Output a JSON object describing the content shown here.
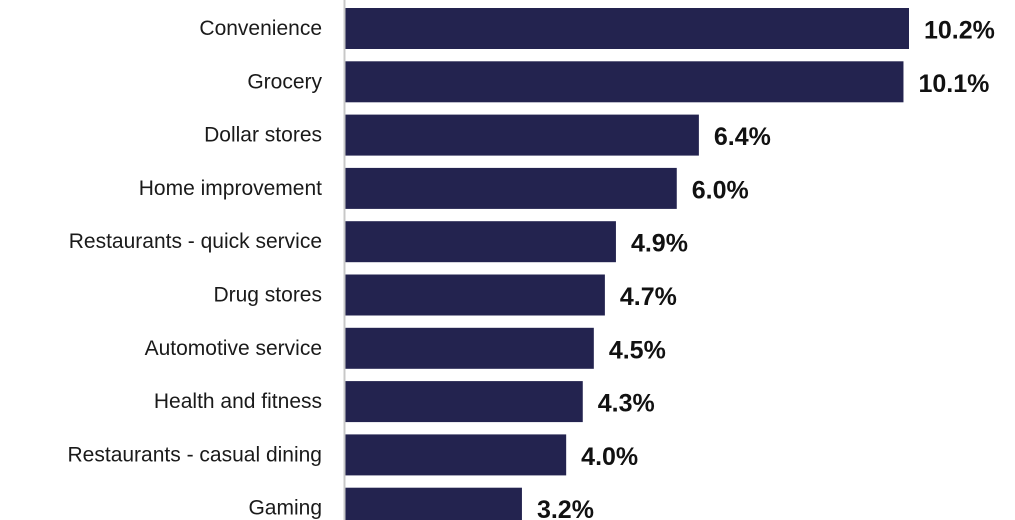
{
  "chart_data": {
    "type": "bar",
    "orientation": "horizontal",
    "categories": [
      "Convenience",
      "Grocery",
      "Dollar stores",
      "Home improvement",
      "Restaurants - quick service",
      "Drug stores",
      "Automotive service",
      "Health and fitness",
      "Restaurants - casual dining",
      "Gaming"
    ],
    "values": [
      10.2,
      10.1,
      6.4,
      6.0,
      4.9,
      4.7,
      4.5,
      4.3,
      4.0,
      3.2
    ],
    "value_labels": [
      "10.2%",
      "10.1%",
      "6.4%",
      "6.0%",
      "4.9%",
      "4.7%",
      "4.5%",
      "4.3%",
      "4.0%",
      "3.2%"
    ],
    "title": "",
    "xlabel": "",
    "ylabel": "",
    "xlim": [
      0,
      10.2
    ],
    "grid": false,
    "legend": "none",
    "bar_color": "#23234f",
    "axis_color": "#c8c8c8"
  }
}
